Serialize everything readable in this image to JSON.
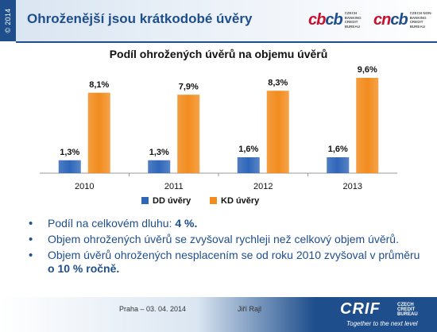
{
  "header": {
    "copyright": "© 2014",
    "title": "Ohroženější jsou krátkodobé úvěry",
    "logo_cbcb": {
      "mark_a": "cb",
      "mark_b": "cb",
      "sub": "CZECH BANKING CREDIT BUREAU"
    },
    "logo_cncb": {
      "mark_a": "cn",
      "mark_b": "cb",
      "sub": "CZECH NON-BANKING CREDIT BUREAU"
    }
  },
  "chart_data": {
    "type": "bar",
    "title": "Podíl ohrožených úvěrů na objemu úvěrů",
    "categories": [
      "2010",
      "2011",
      "2012",
      "2013"
    ],
    "series": [
      {
        "name": "DD úvěry",
        "values": [
          1.3,
          1.3,
          1.6,
          1.6
        ],
        "labels": [
          "1,3%",
          "1,3%",
          "1,6%",
          "1,6%"
        ],
        "color": "#2f66b8"
      },
      {
        "name": "KD úvěry",
        "values": [
          8.1,
          7.9,
          8.3,
          9.6
        ],
        "labels": [
          "8,1%",
          "7,9%",
          "8,3%",
          "9,6%"
        ],
        "color": "#f28c1e"
      }
    ],
    "ylim": [
      0,
      10
    ],
    "legend": "bottom",
    "grid": false
  },
  "bullets": [
    {
      "parts": [
        {
          "text": "Podíl na celkovém dluhu: ",
          "bold": false
        },
        {
          "text": "4 %.",
          "bold": true
        }
      ]
    },
    {
      "parts": [
        {
          "text": "Objem ohrožených úvěrů se zvyšoval rychleji než celkový objem úvěrů.",
          "bold": false
        }
      ]
    },
    {
      "parts": [
        {
          "text": "Objem úvěrů ohrožených nesplacením se od roku 2010 zvyšoval v průměru ",
          "bold": false
        },
        {
          "text": "o 10 % ročně.",
          "bold": true
        }
      ]
    }
  ],
  "footer": {
    "place_date": "Praha – 03. 04. 2014",
    "author": "Jiří Rajl",
    "crif": {
      "mark": "CRIF",
      "sub": "CZECH CREDIT BUREAU",
      "tagline": "Together to the next level"
    }
  }
}
